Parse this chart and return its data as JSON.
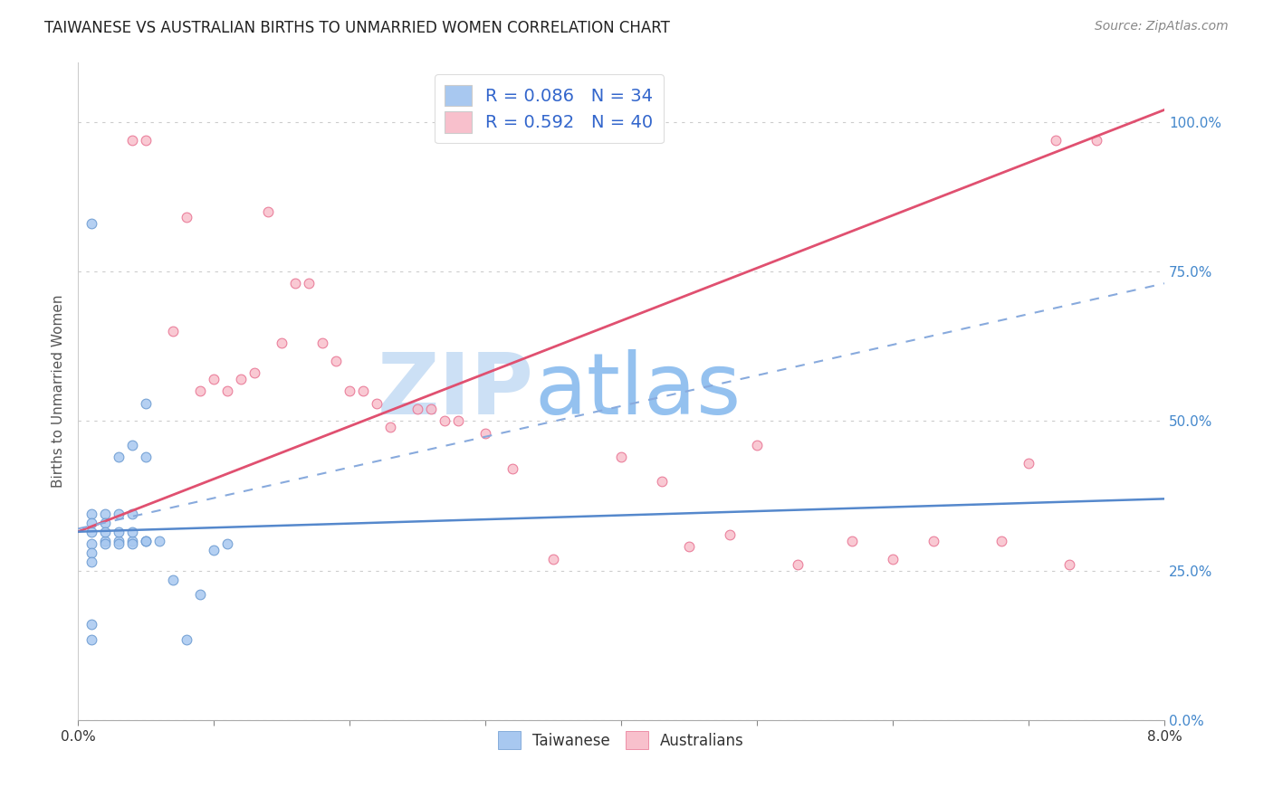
{
  "title": "TAIWANESE VS AUSTRALIAN BIRTHS TO UNMARRIED WOMEN CORRELATION CHART",
  "source": "Source: ZipAtlas.com",
  "ylabel": "Births to Unmarried Women",
  "right_yticks": [
    "0.0%",
    "25.0%",
    "50.0%",
    "75.0%",
    "100.0%"
  ],
  "right_ytick_vals": [
    0.0,
    0.25,
    0.5,
    0.75,
    1.0
  ],
  "legend_entries": [
    {
      "label": "R = 0.086   N = 34",
      "color": "#a8c8f0"
    },
    {
      "label": "R = 0.592   N = 40",
      "color": "#f8c0cc"
    }
  ],
  "taiwanese_scatter": {
    "x": [
      0.001,
      0.002,
      0.003,
      0.004,
      0.005,
      0.001,
      0.002,
      0.003,
      0.004,
      0.005,
      0.001,
      0.002,
      0.003,
      0.004,
      0.005,
      0.001,
      0.002,
      0.003,
      0.004,
      0.001,
      0.002,
      0.003,
      0.004,
      0.005,
      0.006,
      0.007,
      0.008,
      0.009,
      0.01,
      0.011,
      0.001,
      0.001,
      0.001,
      0.001
    ],
    "y": [
      0.83,
      0.3,
      0.44,
      0.46,
      0.44,
      0.345,
      0.345,
      0.345,
      0.345,
      0.3,
      0.33,
      0.33,
      0.3,
      0.3,
      0.53,
      0.315,
      0.315,
      0.315,
      0.315,
      0.295,
      0.295,
      0.295,
      0.295,
      0.3,
      0.3,
      0.235,
      0.135,
      0.21,
      0.285,
      0.295,
      0.28,
      0.265,
      0.16,
      0.135
    ],
    "color": "#a8c8f0",
    "edgecolor": "#6898d0",
    "size": 60
  },
  "australian_scatter": {
    "x": [
      0.004,
      0.005,
      0.007,
      0.008,
      0.009,
      0.01,
      0.011,
      0.012,
      0.013,
      0.014,
      0.015,
      0.016,
      0.017,
      0.018,
      0.019,
      0.02,
      0.021,
      0.022,
      0.023,
      0.025,
      0.026,
      0.027,
      0.028,
      0.03,
      0.032,
      0.035,
      0.04,
      0.043,
      0.045,
      0.048,
      0.05,
      0.053,
      0.057,
      0.06,
      0.063,
      0.068,
      0.07,
      0.073,
      0.075,
      0.072
    ],
    "y": [
      0.97,
      0.97,
      0.65,
      0.84,
      0.55,
      0.57,
      0.55,
      0.57,
      0.58,
      0.85,
      0.63,
      0.73,
      0.73,
      0.63,
      0.6,
      0.55,
      0.55,
      0.53,
      0.49,
      0.52,
      0.52,
      0.5,
      0.5,
      0.48,
      0.42,
      0.27,
      0.44,
      0.4,
      0.29,
      0.31,
      0.46,
      0.26,
      0.3,
      0.27,
      0.3,
      0.3,
      0.43,
      0.26,
      0.97,
      0.97
    ],
    "color": "#f8c0cc",
    "edgecolor": "#e87090",
    "size": 60
  },
  "taiwanese_trendline": {
    "x": [
      0.0,
      0.08
    ],
    "y": [
      0.315,
      0.37
    ],
    "color": "#5588cc",
    "linestyle": "solid",
    "linewidth": 1.8
  },
  "taiwanese_dashed_trendline": {
    "x": [
      0.0,
      0.08
    ],
    "y": [
      0.32,
      0.73
    ],
    "color": "#88aadd",
    "linestyle": "dashed",
    "linewidth": 1.5
  },
  "australian_trendline": {
    "x": [
      0.0,
      0.08
    ],
    "y": [
      0.315,
      1.02
    ],
    "color": "#e05070",
    "linestyle": "solid",
    "linewidth": 2.0
  },
  "xmin": 0.0,
  "xmax": 0.08,
  "ymin": 0.0,
  "ymax": 1.1,
  "watermark_zip": "ZIP",
  "watermark_atlas": "atlas",
  "watermark_color_zip": "#c8ddf5",
  "watermark_color_atlas": "#c8ddf5",
  "background_color": "#ffffff",
  "title_fontsize": 12,
  "source_fontsize": 10
}
